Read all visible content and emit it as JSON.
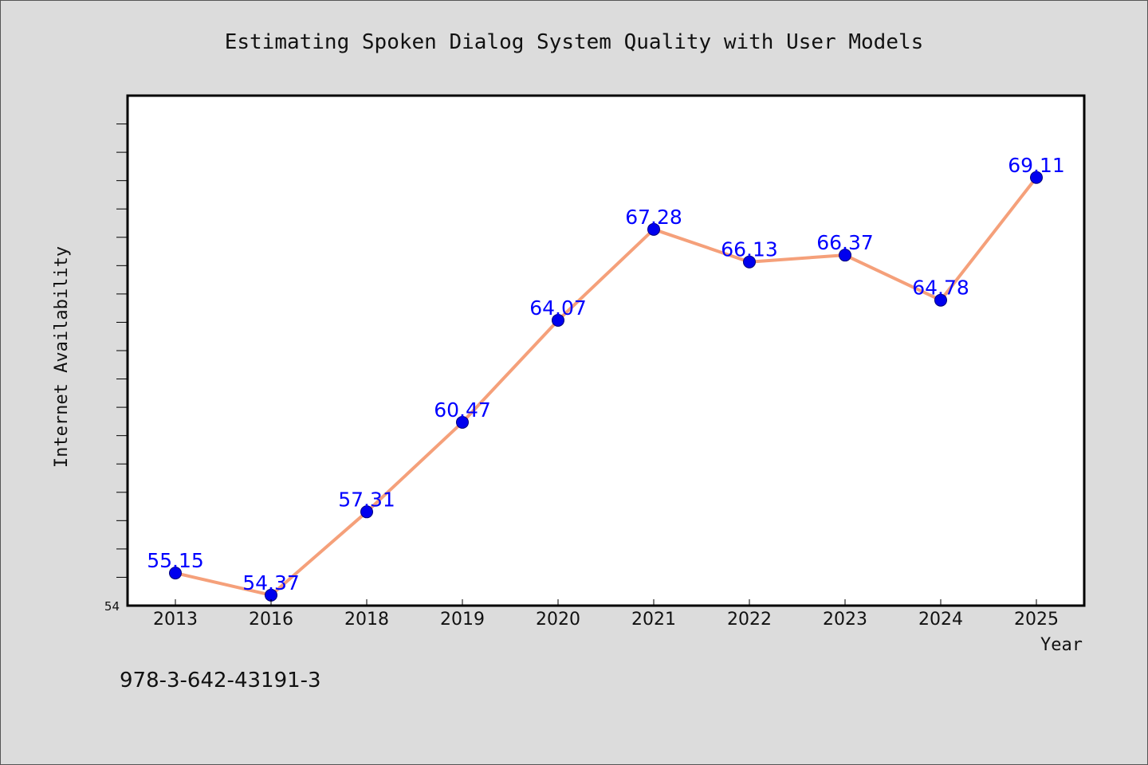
{
  "chart_data": {
    "type": "line",
    "title": "Estimating Spoken Dialog System Quality with User Models",
    "xlabel": "Year",
    "ylabel": "Internet Availability",
    "categories": [
      "2013",
      "2016",
      "2018",
      "2019",
      "2020",
      "2021",
      "2022",
      "2023",
      "2024",
      "2025"
    ],
    "series": [
      {
        "values": [
          55.15,
          54.37,
          57.31,
          60.47,
          64.07,
          67.28,
          66.13,
          66.37,
          64.78,
          69.11
        ],
        "labels": [
          "55.15",
          "54.37",
          "57.31",
          "60.47",
          "64.07",
          "67.28",
          "66.13",
          "66.37",
          "64.78",
          "69.11"
        ]
      }
    ],
    "ylim": [
      54,
      72
    ],
    "y_tick_labels": [
      "54"
    ],
    "grid": false,
    "legend": "none",
    "colors": {
      "line": "#f5a07a",
      "marker": "#0000ee",
      "data_label": "#0000ff",
      "background": "#dcdcdc",
      "plot_background": "#ffffff"
    }
  },
  "footer": {
    "isbn": "978-3-642-43191-3"
  }
}
